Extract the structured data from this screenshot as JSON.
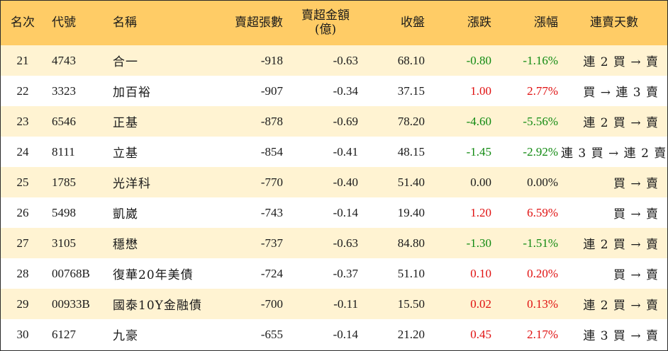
{
  "headers": {
    "rank": "名次",
    "code": "代號",
    "name": "名稱",
    "net_sell_lots": "賣超張數",
    "net_sell_amount": "賣超金額",
    "net_sell_amount_unit": "(億)",
    "close": "收盤",
    "change": "漲跌",
    "change_pct": "漲幅",
    "streak": "連賣天數"
  },
  "colors": {
    "header_bg": "#ffcc66",
    "alt_row_bg": "#fff3d2",
    "up": "#e01010",
    "down": "#118a11"
  },
  "rows": [
    {
      "rank": "21",
      "code": "4743",
      "name": "合一",
      "lots": "-918",
      "amount": "-0.63",
      "close": "68.10",
      "change": "-0.80",
      "pct": "-1.16%",
      "dir": "down",
      "streak": "連 2 買 → 賣"
    },
    {
      "rank": "22",
      "code": "3323",
      "name": "加百裕",
      "lots": "-907",
      "amount": "-0.34",
      "close": "37.15",
      "change": "1.00",
      "pct": "2.77%",
      "dir": "up",
      "streak": "買 → 連 3 賣"
    },
    {
      "rank": "23",
      "code": "6546",
      "name": "正基",
      "lots": "-878",
      "amount": "-0.69",
      "close": "78.20",
      "change": "-4.60",
      "pct": "-5.56%",
      "dir": "down",
      "streak": "連 2 買 → 賣"
    },
    {
      "rank": "24",
      "code": "8111",
      "name": "立基",
      "lots": "-854",
      "amount": "-0.41",
      "close": "48.15",
      "change": "-1.45",
      "pct": "-2.92%",
      "dir": "down",
      "streak": "連 3 買 → 連 2 賣"
    },
    {
      "rank": "25",
      "code": "1785",
      "name": "光洋科",
      "lots": "-770",
      "amount": "-0.40",
      "close": "51.40",
      "change": "0.00",
      "pct": "0.00%",
      "dir": "flat",
      "streak": "買 → 賣"
    },
    {
      "rank": "26",
      "code": "5498",
      "name": "凱崴",
      "lots": "-743",
      "amount": "-0.14",
      "close": "19.40",
      "change": "1.20",
      "pct": "6.59%",
      "dir": "up",
      "streak": "買 → 賣"
    },
    {
      "rank": "27",
      "code": "3105",
      "name": "穩懋",
      "lots": "-737",
      "amount": "-0.63",
      "close": "84.80",
      "change": "-1.30",
      "pct": "-1.51%",
      "dir": "down",
      "streak": "連 2 買 → 賣"
    },
    {
      "rank": "28",
      "code": "00768B",
      "name": "復華20年美債",
      "lots": "-724",
      "amount": "-0.37",
      "close": "51.10",
      "change": "0.10",
      "pct": "0.20%",
      "dir": "up",
      "streak": "買 → 賣"
    },
    {
      "rank": "29",
      "code": "00933B",
      "name": "國泰10Y金融債",
      "lots": "-700",
      "amount": "-0.11",
      "close": "15.50",
      "change": "0.02",
      "pct": "0.13%",
      "dir": "up",
      "streak": "連 2 買 → 賣"
    },
    {
      "rank": "30",
      "code": "6127",
      "name": "九豪",
      "lots": "-655",
      "amount": "-0.14",
      "close": "21.20",
      "change": "0.45",
      "pct": "2.17%",
      "dir": "up",
      "streak": "連 3 買 → 賣"
    }
  ]
}
